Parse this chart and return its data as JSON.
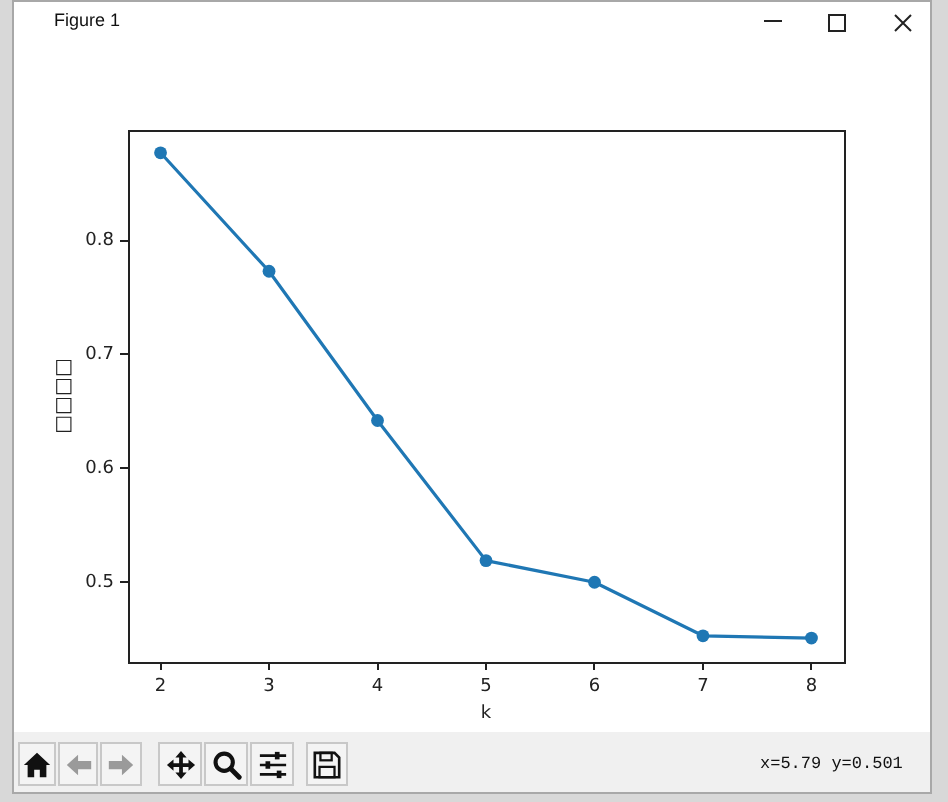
{
  "chart_data": {
    "type": "line",
    "xlabel": "k",
    "ylabel": "□□□□",
    "x": [
      2,
      3,
      4,
      5,
      6,
      7,
      8
    ],
    "series": [
      {
        "color": "#1f77b4",
        "values": [
          0.877,
          0.773,
          0.642,
          0.519,
          0.5,
          0.453,
          0.451
        ]
      }
    ],
    "xlim": [
      1.7,
      8.3
    ],
    "ylim": [
      0.43,
      0.897
    ],
    "xticks": [
      2,
      3,
      4,
      5,
      6,
      7,
      8
    ],
    "yticks": [
      0.5,
      0.6,
      0.7,
      0.8
    ],
    "marker": "circle",
    "annotations": [
      "Figure 1",
      "x=5.79 y=0.501"
    ]
  }
}
